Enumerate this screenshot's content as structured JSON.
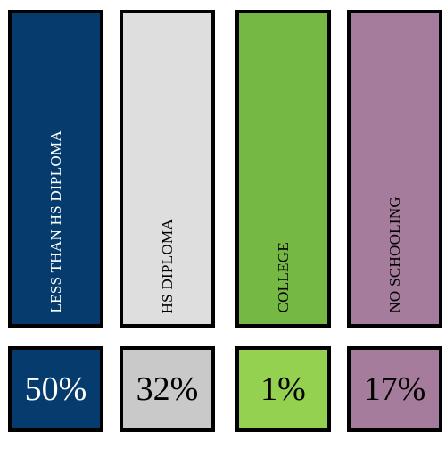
{
  "chart_data": {
    "type": "bar",
    "categories": [
      "LESS THAN HS  DIPLOMA",
      "HS  DIPLOMA",
      "COLLEGE",
      "NO SCHOOLING"
    ],
    "values": [
      50,
      32,
      1,
      17
    ],
    "value_labels": [
      "50%",
      "32%",
      "1%",
      "17%"
    ],
    "unit": "%",
    "colors": [
      "#053b6d",
      "#dedede",
      "#75b843",
      "#a57c9b"
    ],
    "label_colors": [
      "#ffffff",
      "#000000",
      "#000000",
      "#000000"
    ],
    "value_box_colors": [
      "#053b6d",
      "#c9c9c9",
      "#95d151",
      "#a57c9b"
    ],
    "value_label_colors": [
      "#ffffff",
      "#000000",
      "#000000",
      "#000000"
    ],
    "title": "",
    "xlabel": "",
    "ylabel": "",
    "grid": false,
    "legend": "none"
  }
}
